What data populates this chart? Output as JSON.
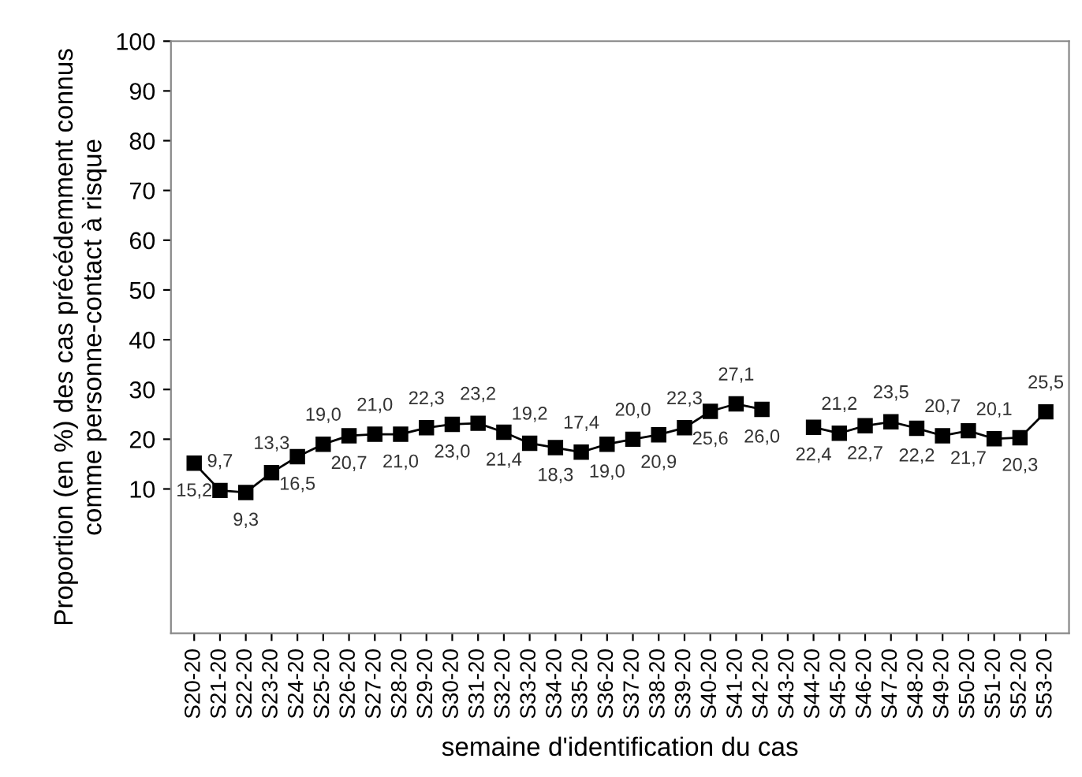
{
  "chart_data": {
    "type": "line",
    "xlabel": "semaine d'identification du cas",
    "ylabel": "Proportion (en %) des cas précédemment connus\ncomme personne-contact à risque",
    "categories": [
      "S20-20",
      "S21-20",
      "S22-20",
      "S23-20",
      "S24-20",
      "S25-20",
      "S26-20",
      "S27-20",
      "S28-20",
      "S29-20",
      "S30-20",
      "S31-20",
      "S32-20",
      "S33-20",
      "S34-20",
      "S35-20",
      "S36-20",
      "S37-20",
      "S38-20",
      "S39-20",
      "S40-20",
      "S41-20",
      "S42-20",
      "S43-20",
      "S44-20",
      "S45-20",
      "S46-20",
      "S47-20",
      "S48-20",
      "S49-20",
      "S50-20",
      "S51-20",
      "S52-20",
      "S53-20"
    ],
    "series": [
      {
        "color": "#000000",
        "values": [
          15.2,
          9.7,
          9.3,
          13.3,
          16.5,
          19.0,
          20.7,
          21.0,
          21.0,
          22.3,
          23.0,
          23.2,
          21.4,
          19.2,
          18.3,
          17.4,
          19.0,
          20.0,
          20.9,
          22.3,
          25.6,
          27.1,
          26.0,
          null,
          22.4,
          21.2,
          22.7,
          23.5,
          22.2,
          20.7,
          21.7,
          20.1,
          20.3,
          25.5
        ],
        "value_labels": [
          "15,2",
          "9,7",
          "9,3",
          "13,3",
          "16,5",
          "19,0",
          "20,7",
          "21,0",
          "21,0",
          "22,3",
          "23,0",
          "23,2",
          "21,4",
          "19,2",
          "18,3",
          "17,4",
          "19,0",
          "20,0",
          "20,9",
          "22,3",
          "25,6",
          "27,1",
          "26,0",
          null,
          "22,4",
          "21,2",
          "22,7",
          "23,5",
          "22,2",
          "20,7",
          "21,7",
          "20,1",
          "20,3",
          "25,5"
        ]
      }
    ],
    "ylim": [
      -19,
      100
    ],
    "yticks": [
      10,
      20,
      30,
      40,
      50,
      60,
      70,
      80,
      90,
      100
    ],
    "marker": "square",
    "line_style": "solid",
    "grid": false,
    "legend": false
  }
}
